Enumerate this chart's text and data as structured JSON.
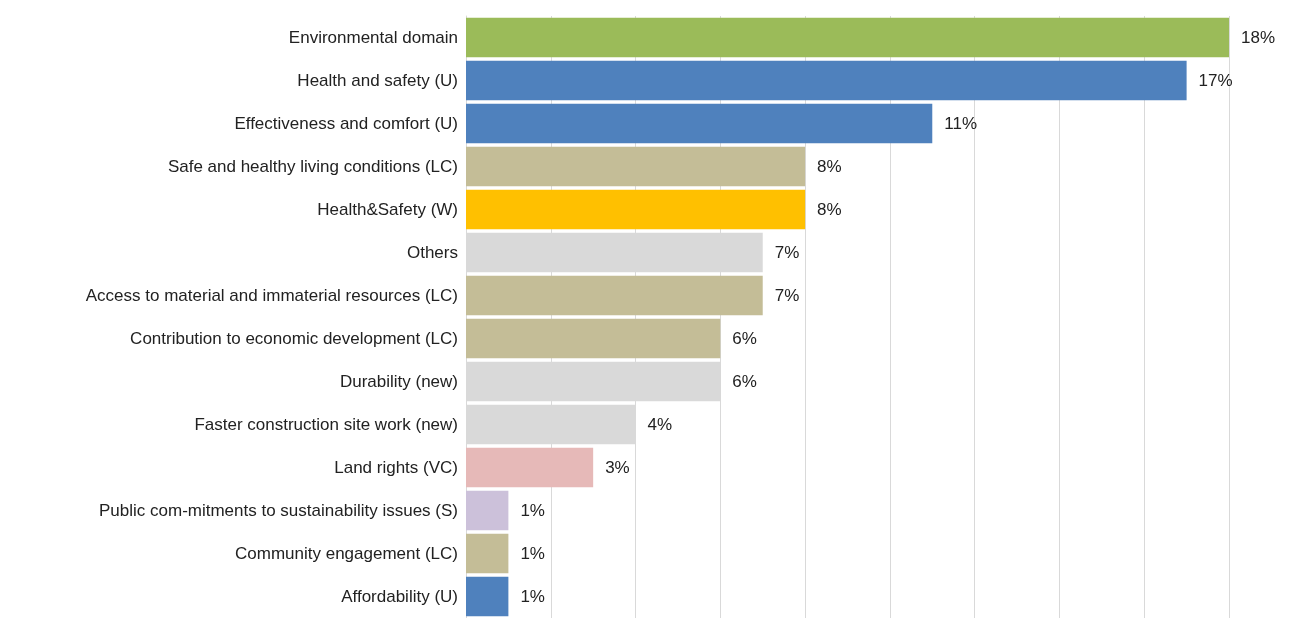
{
  "chart_data": {
    "type": "bar",
    "orientation": "horizontal",
    "categories": [
      "Environmental domain",
      "Health and safety (U)",
      "Effectiveness and comfort (U)",
      "Safe and healthy living conditions (LC)",
      "Health&Safety (W)",
      "Others",
      "Access to material and immaterial resources (LC)",
      "Contribution to economic development (LC)",
      "Durability (new)",
      "Faster construction site work (new)",
      "Land rights (VC)",
      "Public com-mitments to sustainability issues (S)",
      "Community engagement (LC)",
      "Affordability (U)"
    ],
    "values": [
      18,
      17,
      11,
      8,
      8,
      7,
      7,
      6,
      6,
      4,
      3,
      1,
      1,
      1
    ],
    "value_labels": [
      "18%",
      "17%",
      "11%",
      "8%",
      "8%",
      "7%",
      "7%",
      "6%",
      "6%",
      "4%",
      "3%",
      "1%",
      "1%",
      "1%"
    ],
    "colors": [
      "#9bbb59",
      "#4f81bd",
      "#4f81bd",
      "#c4bd97",
      "#ffc000",
      "#d9d9d9",
      "#c4bd97",
      "#c4bd97",
      "#d9d9d9",
      "#d9d9d9",
      "#e6b9b8",
      "#ccc1da",
      "#c4bd97",
      "#4f81bd"
    ],
    "xticks": [
      {
        "value": 0,
        "label": null
      },
      {
        "value": 2,
        "label": null
      },
      {
        "value": 4,
        "label": null
      },
      {
        "value": 6,
        "label": null
      },
      {
        "value": 8,
        "label": null
      },
      {
        "value": 10,
        "label": null
      },
      {
        "value": 12,
        "label": null
      },
      {
        "value": 14,
        "label": null
      },
      {
        "value": 16,
        "label": null
      },
      {
        "value": 18,
        "label": null
      }
    ],
    "grid": "x",
    "tick_labels": "y"
  }
}
